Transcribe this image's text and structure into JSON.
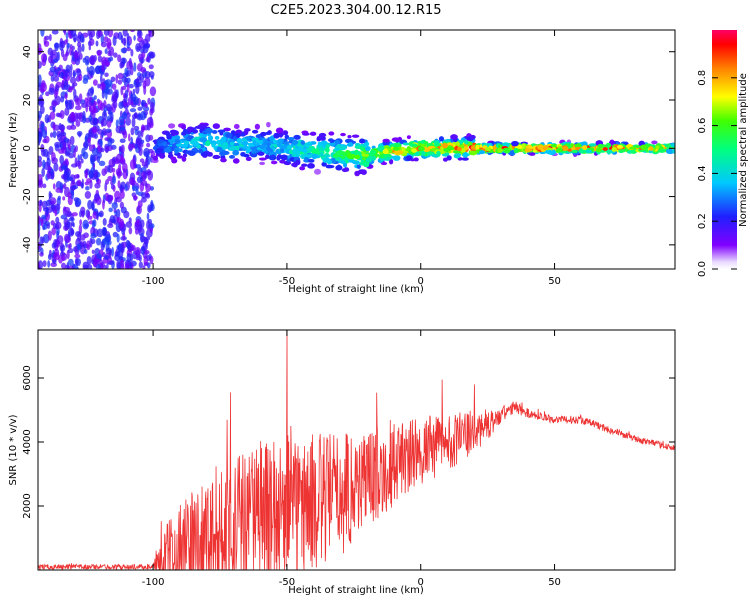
{
  "title": "C2E5.2023.304.00.12.R15",
  "chart_data": [
    {
      "type": "heatmap",
      "xlabel": "Height of straight line (km)",
      "ylabel": "Frequency (Hz)",
      "xlim": [
        -143,
        95
      ],
      "ylim": [
        -50,
        49
      ],
      "xticks": [
        -100,
        -50,
        0,
        50
      ],
      "yticks": [
        -40,
        -20,
        0,
        20,
        40
      ],
      "colorbar": {
        "label": "Normalized spectral amplitude",
        "range": [
          0,
          1
        ],
        "ticks": [
          "0.0",
          "0.2",
          "0.4",
          "0.6",
          "0.8"
        ],
        "colormap": "rainbow (white → purple → blue → cyan → green → yellow → red → pink)"
      },
      "ridge": {
        "description": "Narrow high-amplitude ridge near 0 Hz",
        "x": [
          -100,
          -90,
          -80,
          -70,
          -60,
          -50,
          -40,
          -30,
          -20,
          -10,
          0,
          10,
          20,
          30,
          50,
          70,
          95
        ],
        "center": [
          1,
          2,
          3,
          1,
          2,
          0,
          -1,
          -2,
          -3,
          -1,
          0,
          0,
          0,
          0,
          0,
          0,
          0
        ],
        "peak": [
          0.25,
          0.4,
          0.45,
          0.45,
          0.4,
          0.45,
          0.5,
          0.55,
          0.7,
          0.8,
          0.85,
          0.85,
          0.95,
          0.95,
          0.95,
          0.95,
          0.8
        ]
      },
      "noise_region": {
        "x_range": [
          -143,
          -100
        ],
        "y_range": [
          -50,
          49
        ],
        "amplitude": [
          0.1,
          0.25
        ]
      }
    },
    {
      "type": "line",
      "xlabel": "Height of straight line (km)",
      "ylabel": "SNR (10 * v/v)",
      "xlim": [
        -143,
        95
      ],
      "ylim": [
        0,
        7500
      ],
      "xticks": [
        -100,
        -50,
        0,
        50
      ],
      "yticks": [
        2000,
        4000,
        6000
      ],
      "color": "#ee3333",
      "envelope": {
        "x": [
          -143,
          -100,
          -97,
          -90,
          -80,
          -70,
          -60,
          -50,
          -40,
          -30,
          -20,
          -10,
          0,
          10,
          20,
          30,
          35,
          40,
          50,
          60,
          70,
          80,
          95
        ],
        "base": [
          100,
          100,
          300,
          700,
          1000,
          1400,
          1600,
          1800,
          2100,
          2400,
          2900,
          3300,
          3700,
          4000,
          4300,
          4800,
          5100,
          4900,
          4700,
          4700,
          4400,
          4100,
          3800
        ],
        "amp": [
          80,
          80,
          800,
          1500,
          2000,
          2300,
          2400,
          2400,
          2200,
          2000,
          1600,
          1300,
          1100,
          900,
          700,
          250,
          200,
          150,
          120,
          120,
          120,
          100,
          100
        ]
      },
      "spikes": [
        {
          "x": -71,
          "y": 5550
        },
        {
          "x": -50,
          "y": 7500
        },
        {
          "x": 8,
          "y": 5950
        },
        {
          "x": 20,
          "y": 5800
        }
      ]
    }
  ]
}
